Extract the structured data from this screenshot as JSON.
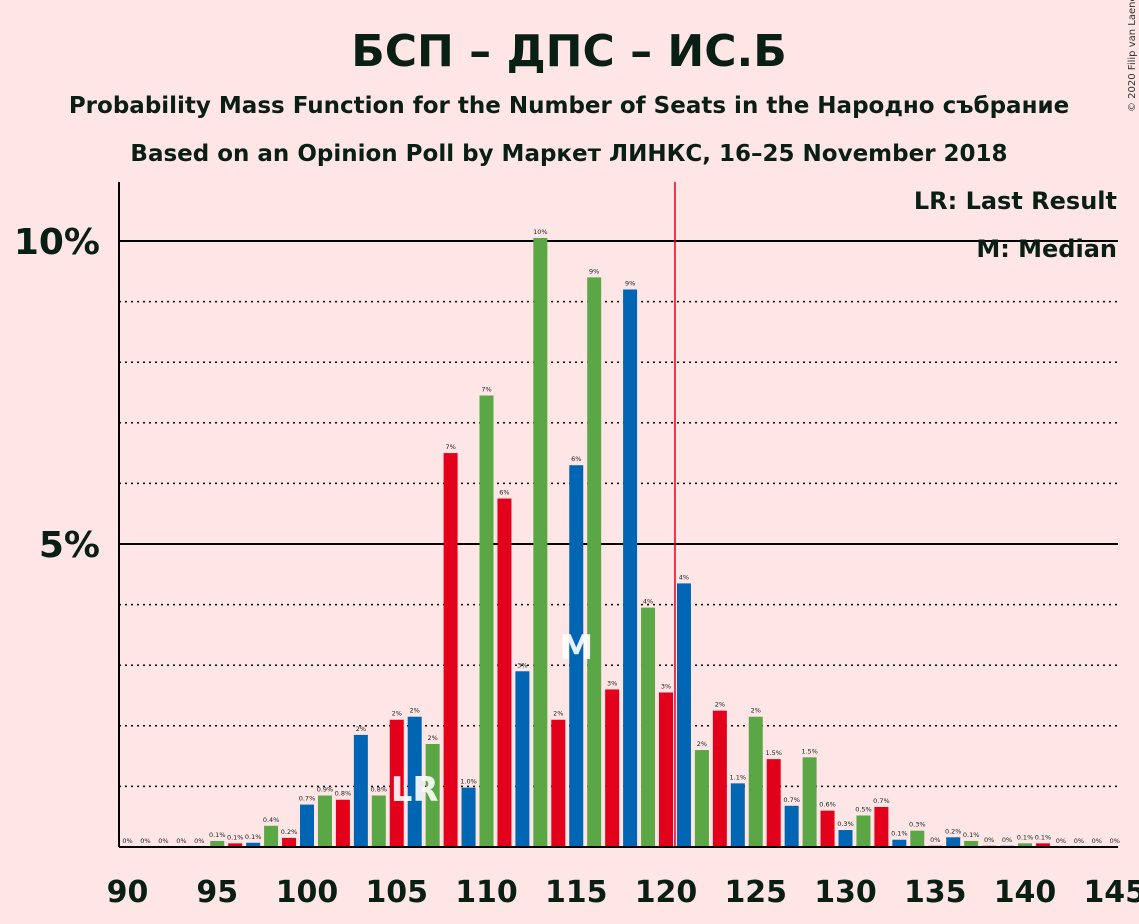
{
  "chart_data": {
    "type": "bar",
    "title": "БСП – ДПС – ИС.Б",
    "subtitle": "Probability Mass Function for the Number of Seats in the Народно събрание",
    "subtitle2": "Based on an Opinion Poll by Маркет ЛИНКС, 16–25 November 2018",
    "copyright": "© 2020 Filip van Laenen",
    "legend": {
      "last_result": "LR: Last Result",
      "median": "M: Median"
    },
    "marker_labels": {
      "last_result": "LR",
      "median": "M"
    },
    "last_result_seat": 106,
    "median_seat": 115,
    "majority_line": 120.5,
    "xlim": [
      90,
      145
    ],
    "ylim": [
      0,
      11
    ],
    "y_ticks": [
      {
        "value": 5,
        "label": "5%"
      },
      {
        "value": 10,
        "label": "10%"
      }
    ],
    "x_ticks": [
      90,
      95,
      100,
      105,
      110,
      115,
      120,
      125,
      130,
      135,
      140,
      145
    ],
    "colors": {
      "blue": "#0066B3",
      "green": "#5BA745",
      "red": "#E3001B",
      "majority": "#E3001B",
      "grid": "#000000"
    },
    "bars": [
      {
        "seat": 90,
        "value": 0.0,
        "label": "0%",
        "color": "blue"
      },
      {
        "seat": 91,
        "value": 0.0,
        "label": "0%",
        "color": "green"
      },
      {
        "seat": 92,
        "value": 0.0,
        "label": "0%",
        "color": "red"
      },
      {
        "seat": 93,
        "value": 0.0,
        "label": "0%",
        "color": "blue"
      },
      {
        "seat": 94,
        "value": 0.0,
        "label": "0%",
        "color": "green"
      },
      {
        "seat": 95,
        "value": 0.1,
        "label": "0.1%",
        "color": "green"
      },
      {
        "seat": 96,
        "value": 0.06,
        "label": "0.1%",
        "color": "red"
      },
      {
        "seat": 97,
        "value": 0.07,
        "label": "0.1%",
        "color": "blue"
      },
      {
        "seat": 98,
        "value": 0.35,
        "label": "0.4%",
        "color": "green"
      },
      {
        "seat": 99,
        "value": 0.15,
        "label": "0.2%",
        "color": "red"
      },
      {
        "seat": 100,
        "value": 0.7,
        "label": "0.7%",
        "color": "blue"
      },
      {
        "seat": 101,
        "value": 0.85,
        "label": "0.9%",
        "color": "green"
      },
      {
        "seat": 102,
        "value": 0.78,
        "label": "0.8%",
        "color": "red"
      },
      {
        "seat": 103,
        "value": 1.85,
        "label": "2%",
        "color": "blue"
      },
      {
        "seat": 104,
        "value": 0.85,
        "label": "0.8%",
        "color": "green"
      },
      {
        "seat": 105,
        "value": 2.1,
        "label": "2%",
        "color": "red"
      },
      {
        "seat": 106,
        "value": 2.15,
        "label": "2%",
        "color": "blue"
      },
      {
        "seat": 107,
        "value": 1.7,
        "label": "2%",
        "color": "green"
      },
      {
        "seat": 108,
        "value": 6.5,
        "label": "7%",
        "color": "red"
      },
      {
        "seat": 109,
        "value": 0.98,
        "label": "1.0%",
        "color": "blue"
      },
      {
        "seat": 110,
        "value": 7.45,
        "label": "7%",
        "color": "green"
      },
      {
        "seat": 111,
        "value": 5.75,
        "label": "6%",
        "color": "red"
      },
      {
        "seat": 112,
        "value": 2.9,
        "label": "3%",
        "color": "blue"
      },
      {
        "seat": 113,
        "value": 10.05,
        "label": "10%",
        "color": "green"
      },
      {
        "seat": 114,
        "value": 2.1,
        "label": "2%",
        "color": "red"
      },
      {
        "seat": 115,
        "value": 6.3,
        "label": "6%",
        "color": "blue"
      },
      {
        "seat": 116,
        "value": 9.4,
        "label": "9%",
        "color": "green"
      },
      {
        "seat": 117,
        "value": 2.6,
        "label": "3%",
        "color": "red"
      },
      {
        "seat": 118,
        "value": 9.2,
        "label": "9%",
        "color": "blue"
      },
      {
        "seat": 119,
        "value": 3.95,
        "label": "4%",
        "color": "green"
      },
      {
        "seat": 120,
        "value": 2.55,
        "label": "3%",
        "color": "red"
      },
      {
        "seat": 121,
        "value": 4.35,
        "label": "4%",
        "color": "blue"
      },
      {
        "seat": 122,
        "value": 1.6,
        "label": "2%",
        "color": "green"
      },
      {
        "seat": 123,
        "value": 2.25,
        "label": "2%",
        "color": "red"
      },
      {
        "seat": 124,
        "value": 1.05,
        "label": "1.1%",
        "color": "blue"
      },
      {
        "seat": 125,
        "value": 2.15,
        "label": "2%",
        "color": "green"
      },
      {
        "seat": 126,
        "value": 1.45,
        "label": "1.5%",
        "color": "red"
      },
      {
        "seat": 127,
        "value": 0.68,
        "label": "0.7%",
        "color": "blue"
      },
      {
        "seat": 128,
        "value": 1.48,
        "label": "1.5%",
        "color": "green"
      },
      {
        "seat": 129,
        "value": 0.6,
        "label": "0.6%",
        "color": "red"
      },
      {
        "seat": 130,
        "value": 0.28,
        "label": "0.3%",
        "color": "blue"
      },
      {
        "seat": 131,
        "value": 0.52,
        "label": "0.5%",
        "color": "green"
      },
      {
        "seat": 132,
        "value": 0.66,
        "label": "0.7%",
        "color": "red"
      },
      {
        "seat": 133,
        "value": 0.12,
        "label": "0.1%",
        "color": "blue"
      },
      {
        "seat": 134,
        "value": 0.27,
        "label": "0.3%",
        "color": "green"
      },
      {
        "seat": 135,
        "value": 0.02,
        "label": "0%",
        "color": "red"
      },
      {
        "seat": 136,
        "value": 0.16,
        "label": "0.2%",
        "color": "blue"
      },
      {
        "seat": 137,
        "value": 0.1,
        "label": "0.1%",
        "color": "green"
      },
      {
        "seat": 138,
        "value": 0.02,
        "label": "0%",
        "color": "red"
      },
      {
        "seat": 139,
        "value": 0.02,
        "label": "0%",
        "color": "blue"
      },
      {
        "seat": 140,
        "value": 0.06,
        "label": "0.1%",
        "color": "green"
      },
      {
        "seat": 141,
        "value": 0.06,
        "label": "0.1%",
        "color": "red"
      },
      {
        "seat": 142,
        "value": 0.0,
        "label": "0%",
        "color": "blue"
      },
      {
        "seat": 143,
        "value": 0.0,
        "label": "0%",
        "color": "green"
      },
      {
        "seat": 144,
        "value": 0.0,
        "label": "0%",
        "color": "red"
      },
      {
        "seat": 145,
        "value": 0.0,
        "label": "0%",
        "color": "blue"
      }
    ]
  }
}
